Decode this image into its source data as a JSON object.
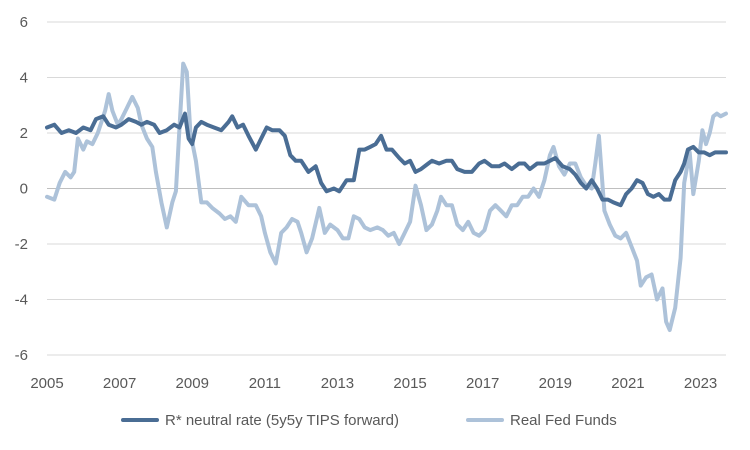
{
  "chart_data": {
    "type": "line",
    "title": "",
    "xlabel": "",
    "ylabel": "",
    "xlim": [
      2005,
      2023.7
    ],
    "ylim": [
      -6,
      6
    ],
    "x_ticks": [
      "2005",
      "2007",
      "2009",
      "2011",
      "2013",
      "2015",
      "2017",
      "2019",
      "2021",
      "2023"
    ],
    "y_ticks": [
      "6",
      "4",
      "2",
      "0",
      "-2",
      "-4",
      "-6"
    ],
    "grid": "horizontal",
    "legend_position": "bottom",
    "series": [
      {
        "name": "R* neutral rate (5y5y TIPS forward)",
        "color": "#4a6d94",
        "points": [
          [
            2005.0,
            2.2
          ],
          [
            2005.2,
            2.3
          ],
          [
            2005.4,
            2.0
          ],
          [
            2005.6,
            2.1
          ],
          [
            2005.8,
            2.0
          ],
          [
            2006.0,
            2.2
          ],
          [
            2006.2,
            2.1
          ],
          [
            2006.35,
            2.5
          ],
          [
            2006.55,
            2.6
          ],
          [
            2006.7,
            2.3
          ],
          [
            2006.9,
            2.2
          ],
          [
            2007.05,
            2.3
          ],
          [
            2007.25,
            2.5
          ],
          [
            2007.45,
            2.4
          ],
          [
            2007.6,
            2.3
          ],
          [
            2007.75,
            2.4
          ],
          [
            2007.95,
            2.3
          ],
          [
            2008.1,
            2.0
          ],
          [
            2008.3,
            2.1
          ],
          [
            2008.5,
            2.3
          ],
          [
            2008.65,
            2.2
          ],
          [
            2008.8,
            2.7
          ],
          [
            2008.9,
            1.8
          ],
          [
            2009.0,
            1.6
          ],
          [
            2009.1,
            2.2
          ],
          [
            2009.25,
            2.4
          ],
          [
            2009.4,
            2.3
          ],
          [
            2009.6,
            2.2
          ],
          [
            2009.8,
            2.1
          ],
          [
            2010.0,
            2.4
          ],
          [
            2010.1,
            2.6
          ],
          [
            2010.25,
            2.2
          ],
          [
            2010.4,
            2.3
          ],
          [
            2010.55,
            1.9
          ],
          [
            2010.75,
            1.4
          ],
          [
            2010.9,
            1.8
          ],
          [
            2011.05,
            2.2
          ],
          [
            2011.2,
            2.1
          ],
          [
            2011.4,
            2.1
          ],
          [
            2011.55,
            1.9
          ],
          [
            2011.7,
            1.2
          ],
          [
            2011.85,
            1.0
          ],
          [
            2012.0,
            1.0
          ],
          [
            2012.2,
            0.6
          ],
          [
            2012.4,
            0.8
          ],
          [
            2012.55,
            0.2
          ],
          [
            2012.7,
            -0.1
          ],
          [
            2012.9,
            0.0
          ],
          [
            2013.05,
            -0.1
          ],
          [
            2013.25,
            0.3
          ],
          [
            2013.45,
            0.3
          ],
          [
            2013.6,
            1.4
          ],
          [
            2013.75,
            1.4
          ],
          [
            2013.9,
            1.5
          ],
          [
            2014.05,
            1.6
          ],
          [
            2014.2,
            1.9
          ],
          [
            2014.35,
            1.4
          ],
          [
            2014.5,
            1.4
          ],
          [
            2014.7,
            1.1
          ],
          [
            2014.85,
            0.9
          ],
          [
            2015.0,
            1.0
          ],
          [
            2015.15,
            0.6
          ],
          [
            2015.3,
            0.7
          ],
          [
            2015.5,
            0.9
          ],
          [
            2015.6,
            1.0
          ],
          [
            2015.8,
            0.9
          ],
          [
            2016.0,
            1.0
          ],
          [
            2016.15,
            1.0
          ],
          [
            2016.3,
            0.7
          ],
          [
            2016.5,
            0.6
          ],
          [
            2016.7,
            0.6
          ],
          [
            2016.9,
            0.9
          ],
          [
            2017.05,
            1.0
          ],
          [
            2017.25,
            0.8
          ],
          [
            2017.45,
            0.8
          ],
          [
            2017.6,
            0.9
          ],
          [
            2017.8,
            0.7
          ],
          [
            2018.0,
            0.9
          ],
          [
            2018.15,
            0.9
          ],
          [
            2018.3,
            0.7
          ],
          [
            2018.5,
            0.9
          ],
          [
            2018.7,
            0.9
          ],
          [
            2018.85,
            1.0
          ],
          [
            2019.0,
            1.1
          ],
          [
            2019.2,
            0.8
          ],
          [
            2019.4,
            0.7
          ],
          [
            2019.55,
            0.5
          ],
          [
            2019.7,
            0.2
          ],
          [
            2019.85,
            0.0
          ],
          [
            2020.0,
            0.3
          ],
          [
            2020.15,
            0.0
          ],
          [
            2020.3,
            -0.4
          ],
          [
            2020.45,
            -0.4
          ],
          [
            2020.6,
            -0.5
          ],
          [
            2020.8,
            -0.6
          ],
          [
            2020.95,
            -0.2
          ],
          [
            2021.1,
            0.0
          ],
          [
            2021.25,
            0.3
          ],
          [
            2021.4,
            0.2
          ],
          [
            2021.55,
            -0.2
          ],
          [
            2021.7,
            -0.3
          ],
          [
            2021.85,
            -0.2
          ],
          [
            2022.0,
            -0.4
          ],
          [
            2022.15,
            -0.4
          ],
          [
            2022.3,
            0.3
          ],
          [
            2022.45,
            0.6
          ],
          [
            2022.55,
            0.9
          ],
          [
            2022.65,
            1.4
          ],
          [
            2022.8,
            1.5
          ],
          [
            2022.95,
            1.3
          ],
          [
            2023.1,
            1.3
          ],
          [
            2023.25,
            1.2
          ],
          [
            2023.4,
            1.3
          ],
          [
            2023.55,
            1.3
          ],
          [
            2023.7,
            1.3
          ]
        ]
      },
      {
        "name": "Real Fed Funds",
        "color": "#adc2d9",
        "points": [
          [
            2005.0,
            -0.3
          ],
          [
            2005.2,
            -0.4
          ],
          [
            2005.35,
            0.2
          ],
          [
            2005.5,
            0.6
          ],
          [
            2005.65,
            0.4
          ],
          [
            2005.75,
            0.6
          ],
          [
            2005.85,
            1.8
          ],
          [
            2006.0,
            1.4
          ],
          [
            2006.1,
            1.7
          ],
          [
            2006.25,
            1.6
          ],
          [
            2006.4,
            2.0
          ],
          [
            2006.5,
            2.4
          ],
          [
            2006.6,
            2.8
          ],
          [
            2006.7,
            3.4
          ],
          [
            2006.8,
            2.8
          ],
          [
            2006.95,
            2.3
          ],
          [
            2007.05,
            2.5
          ],
          [
            2007.2,
            2.9
          ],
          [
            2007.35,
            3.3
          ],
          [
            2007.5,
            2.9
          ],
          [
            2007.6,
            2.3
          ],
          [
            2007.75,
            1.8
          ],
          [
            2007.9,
            1.5
          ],
          [
            2008.0,
            0.6
          ],
          [
            2008.15,
            -0.5
          ],
          [
            2008.3,
            -1.4
          ],
          [
            2008.45,
            -0.5
          ],
          [
            2008.55,
            -0.1
          ],
          [
            2008.65,
            2.2
          ],
          [
            2008.75,
            4.5
          ],
          [
            2008.85,
            4.2
          ],
          [
            2008.95,
            2.0
          ],
          [
            2009.1,
            1.0
          ],
          [
            2009.25,
            -0.5
          ],
          [
            2009.4,
            -0.5
          ],
          [
            2009.55,
            -0.7
          ],
          [
            2009.75,
            -0.9
          ],
          [
            2009.9,
            -1.1
          ],
          [
            2010.05,
            -1.0
          ],
          [
            2010.2,
            -1.2
          ],
          [
            2010.35,
            -0.3
          ],
          [
            2010.55,
            -0.6
          ],
          [
            2010.75,
            -0.6
          ],
          [
            2010.9,
            -1.0
          ],
          [
            2011.0,
            -1.6
          ],
          [
            2011.15,
            -2.3
          ],
          [
            2011.3,
            -2.7
          ],
          [
            2011.45,
            -1.6
          ],
          [
            2011.6,
            -1.4
          ],
          [
            2011.75,
            -1.1
          ],
          [
            2011.9,
            -1.2
          ],
          [
            2012.0,
            -1.6
          ],
          [
            2012.15,
            -2.3
          ],
          [
            2012.3,
            -1.8
          ],
          [
            2012.5,
            -0.7
          ],
          [
            2012.65,
            -1.6
          ],
          [
            2012.8,
            -1.3
          ],
          [
            2013.0,
            -1.5
          ],
          [
            2013.15,
            -1.8
          ],
          [
            2013.3,
            -1.8
          ],
          [
            2013.45,
            -1.0
          ],
          [
            2013.6,
            -1.1
          ],
          [
            2013.75,
            -1.4
          ],
          [
            2013.9,
            -1.5
          ],
          [
            2014.1,
            -1.4
          ],
          [
            2014.25,
            -1.5
          ],
          [
            2014.4,
            -1.7
          ],
          [
            2014.55,
            -1.6
          ],
          [
            2014.7,
            -2.0
          ],
          [
            2014.85,
            -1.6
          ],
          [
            2015.0,
            -1.2
          ],
          [
            2015.15,
            0.1
          ],
          [
            2015.3,
            -0.6
          ],
          [
            2015.45,
            -1.5
          ],
          [
            2015.6,
            -1.3
          ],
          [
            2015.75,
            -0.8
          ],
          [
            2015.85,
            -0.3
          ],
          [
            2016.0,
            -0.6
          ],
          [
            2016.15,
            -0.6
          ],
          [
            2016.3,
            -1.3
          ],
          [
            2016.45,
            -1.5
          ],
          [
            2016.6,
            -1.2
          ],
          [
            2016.75,
            -1.6
          ],
          [
            2016.9,
            -1.7
          ],
          [
            2017.05,
            -1.5
          ],
          [
            2017.2,
            -0.8
          ],
          [
            2017.35,
            -0.6
          ],
          [
            2017.5,
            -0.8
          ],
          [
            2017.65,
            -1.0
          ],
          [
            2017.8,
            -0.6
          ],
          [
            2017.95,
            -0.6
          ],
          [
            2018.1,
            -0.3
          ],
          [
            2018.25,
            -0.3
          ],
          [
            2018.4,
            0.0
          ],
          [
            2018.55,
            -0.3
          ],
          [
            2018.7,
            0.3
          ],
          [
            2018.85,
            1.2
          ],
          [
            2018.95,
            1.5
          ],
          [
            2019.1,
            0.8
          ],
          [
            2019.25,
            0.5
          ],
          [
            2019.4,
            0.9
          ],
          [
            2019.55,
            0.9
          ],
          [
            2019.7,
            0.4
          ],
          [
            2019.85,
            0.1
          ],
          [
            2020.0,
            0.0
          ],
          [
            2020.1,
            0.9
          ],
          [
            2020.2,
            1.9
          ],
          [
            2020.35,
            -0.8
          ],
          [
            2020.5,
            -1.3
          ],
          [
            2020.65,
            -1.7
          ],
          [
            2020.8,
            -1.8
          ],
          [
            2020.95,
            -1.6
          ],
          [
            2021.1,
            -2.1
          ],
          [
            2021.25,
            -2.6
          ],
          [
            2021.35,
            -3.5
          ],
          [
            2021.5,
            -3.2
          ],
          [
            2021.65,
            -3.1
          ],
          [
            2021.8,
            -4.0
          ],
          [
            2021.95,
            -3.6
          ],
          [
            2022.05,
            -4.8
          ],
          [
            2022.15,
            -5.1
          ],
          [
            2022.3,
            -4.3
          ],
          [
            2022.45,
            -2.5
          ],
          [
            2022.55,
            0.2
          ],
          [
            2022.7,
            1.3
          ],
          [
            2022.8,
            -0.2
          ],
          [
            2022.95,
            1.0
          ],
          [
            2023.05,
            2.1
          ],
          [
            2023.15,
            1.6
          ],
          [
            2023.25,
            2.0
          ],
          [
            2023.35,
            2.6
          ],
          [
            2023.45,
            2.7
          ],
          [
            2023.55,
            2.6
          ],
          [
            2023.7,
            2.7
          ]
        ]
      }
    ]
  }
}
